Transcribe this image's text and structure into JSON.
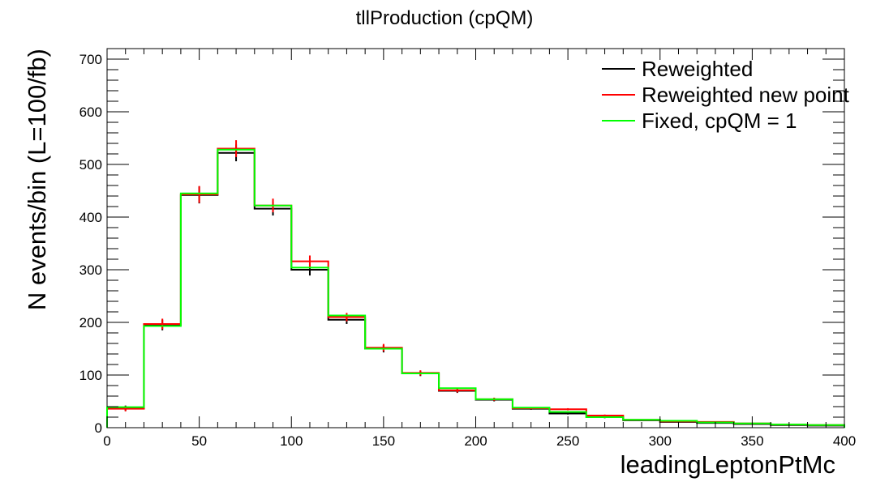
{
  "chart_data": {
    "type": "line",
    "title": "tllProduction (cpQM)",
    "xlabel": "leadingLeptonPtMc",
    "ylabel": "N events/bin (L=100/fb)",
    "xlim": [
      0,
      400
    ],
    "ylim": [
      0,
      720
    ],
    "xticks": [
      0,
      50,
      100,
      150,
      200,
      250,
      300,
      350,
      400
    ],
    "yticks": [
      0,
      100,
      200,
      300,
      400,
      500,
      600,
      700
    ],
    "grid": false,
    "legend_position": "top-right",
    "bin_edges": [
      0,
      20,
      40,
      60,
      80,
      100,
      120,
      140,
      160,
      180,
      200,
      220,
      240,
      260,
      280,
      300,
      320,
      340,
      360,
      380,
      400
    ],
    "series": [
      {
        "name": "Reweighted",
        "color": "#000000",
        "values": [
          37,
          195,
          442,
          522,
          416,
          300,
          205,
          150,
          103,
          70,
          53,
          36,
          27,
          20,
          14,
          11,
          9,
          7,
          5,
          4
        ],
        "errors": [
          5,
          10,
          16,
          16,
          13,
          11,
          8,
          7,
          5,
          4,
          3,
          2,
          2,
          2,
          1,
          1,
          1,
          1,
          1,
          1
        ]
      },
      {
        "name": "Reweighted new point",
        "color": "#ff0000",
        "values": [
          36,
          197,
          443,
          530,
          422,
          316,
          210,
          152,
          104,
          71,
          54,
          37,
          35,
          23,
          15,
          12,
          11,
          8,
          6,
          5
        ],
        "errors": [
          5,
          10,
          16,
          16,
          13,
          11,
          8,
          7,
          5,
          4,
          3,
          2,
          2,
          2,
          1,
          1,
          1,
          1,
          1,
          1
        ]
      },
      {
        "name": "Fixed, cpQM = 1",
        "color": "#00ff00",
        "values": [
          39,
          193,
          445,
          528,
          422,
          304,
          213,
          150,
          103,
          75,
          54,
          38,
          30,
          20,
          15,
          13,
          10,
          8,
          6,
          5
        ]
      }
    ]
  }
}
